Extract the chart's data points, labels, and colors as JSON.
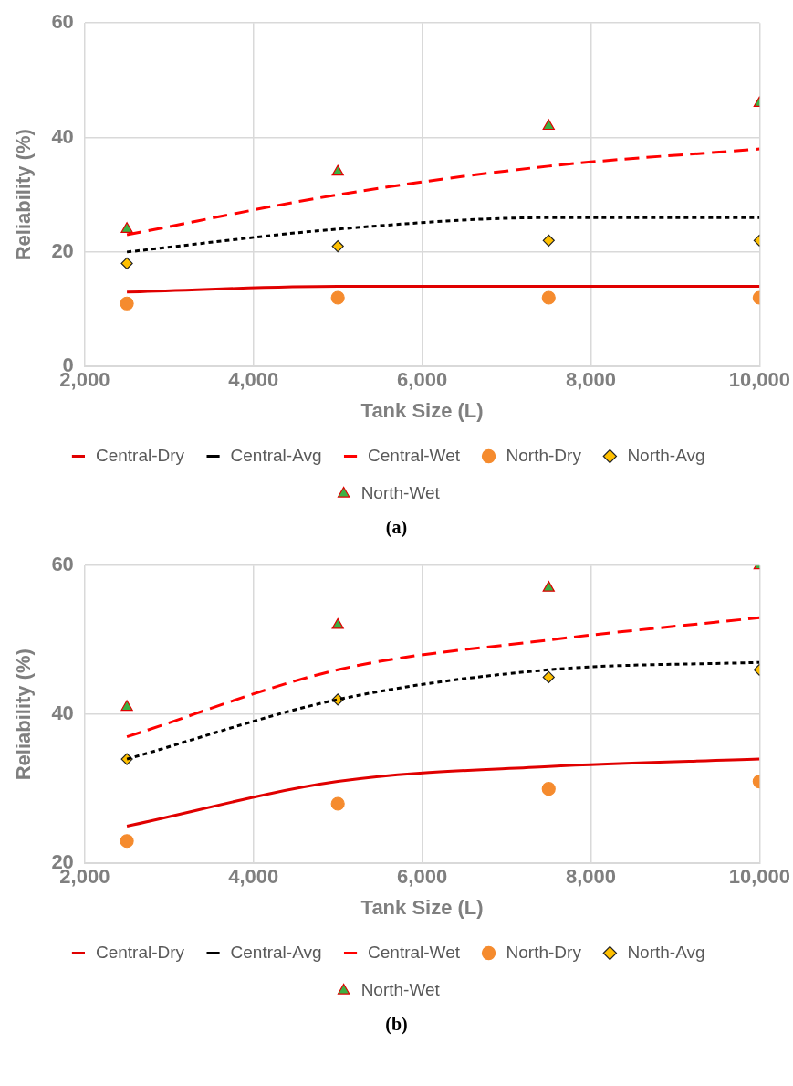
{
  "chart_data": [
    {
      "type": "line",
      "xlabel": "Tank Size (L)",
      "ylabel": "Reliability (%)",
      "x": [
        2500,
        5000,
        7500,
        10000
      ],
      "xlim": [
        2000,
        10000
      ],
      "xticks": [
        {
          "value": 2000,
          "label": "2,000"
        },
        {
          "value": 4000,
          "label": "4,000"
        },
        {
          "value": 6000,
          "label": "6,000"
        },
        {
          "value": 8000,
          "label": "8,000"
        },
        {
          "value": 10000,
          "label": "10,000"
        }
      ],
      "ylim": [
        0,
        60
      ],
      "yticks": [
        0,
        20,
        40,
        60
      ],
      "grid": true,
      "legend": "bottom",
      "annotations": [
        "(a)"
      ],
      "series": [
        {
          "name": "Central-Dry",
          "type": "line",
          "color": "#e00000",
          "line_style": "solid",
          "marker": "none",
          "values": [
            13,
            14,
            14,
            14
          ]
        },
        {
          "name": "Central-Avg",
          "type": "line",
          "color": "#000000",
          "line_style": "dotted",
          "marker": "none",
          "values": [
            20,
            24,
            26,
            26
          ]
        },
        {
          "name": "Central-Wet",
          "type": "line",
          "color": "#ff0000",
          "line_style": "dashed",
          "marker": "none",
          "values": [
            23,
            30,
            35,
            38
          ]
        },
        {
          "name": "North-Dry",
          "type": "scatter",
          "color": "#f58b2e",
          "marker": "circle",
          "values": [
            11,
            12,
            12,
            12
          ]
        },
        {
          "name": "North-Avg",
          "type": "scatter",
          "color": "#ffc000",
          "marker": "diamond",
          "values": [
            18,
            21,
            22,
            22
          ]
        },
        {
          "name": "North-Wet",
          "type": "scatter",
          "color": "#3cb043",
          "marker": "triangle",
          "values": [
            24,
            34,
            42,
            46
          ]
        }
      ]
    },
    {
      "type": "line",
      "xlabel": "Tank Size (L)",
      "ylabel": "Reliability (%)",
      "x": [
        2500,
        5000,
        7500,
        10000
      ],
      "xlim": [
        2000,
        10000
      ],
      "xticks": [
        {
          "value": 2000,
          "label": "2,000"
        },
        {
          "value": 4000,
          "label": "4,000"
        },
        {
          "value": 6000,
          "label": "6,000"
        },
        {
          "value": 8000,
          "label": "8,000"
        },
        {
          "value": 10000,
          "label": "10,000"
        }
      ],
      "ylim": [
        20,
        60
      ],
      "yticks": [
        20,
        40,
        60
      ],
      "grid": true,
      "legend": "bottom",
      "annotations": [
        "(b)"
      ],
      "series": [
        {
          "name": "Central-Dry",
          "type": "line",
          "color": "#e00000",
          "line_style": "solid",
          "marker": "none",
          "values": [
            25,
            31,
            33,
            34
          ]
        },
        {
          "name": "Central-Avg",
          "type": "line",
          "color": "#000000",
          "line_style": "dotted",
          "marker": "none",
          "values": [
            34,
            42,
            46,
            47
          ]
        },
        {
          "name": "Central-Wet",
          "type": "line",
          "color": "#ff0000",
          "line_style": "dashed",
          "marker": "none",
          "values": [
            37,
            46,
            50,
            53
          ]
        },
        {
          "name": "North-Dry",
          "type": "scatter",
          "color": "#f58b2e",
          "marker": "circle",
          "values": [
            23,
            28,
            30,
            31
          ]
        },
        {
          "name": "North-Avg",
          "type": "scatter",
          "color": "#ffc000",
          "marker": "diamond",
          "values": [
            34,
            42,
            45,
            46
          ]
        },
        {
          "name": "North-Wet",
          "type": "scatter",
          "color": "#3cb043",
          "marker": "triangle",
          "values": [
            41,
            52,
            57,
            60
          ]
        }
      ]
    }
  ]
}
